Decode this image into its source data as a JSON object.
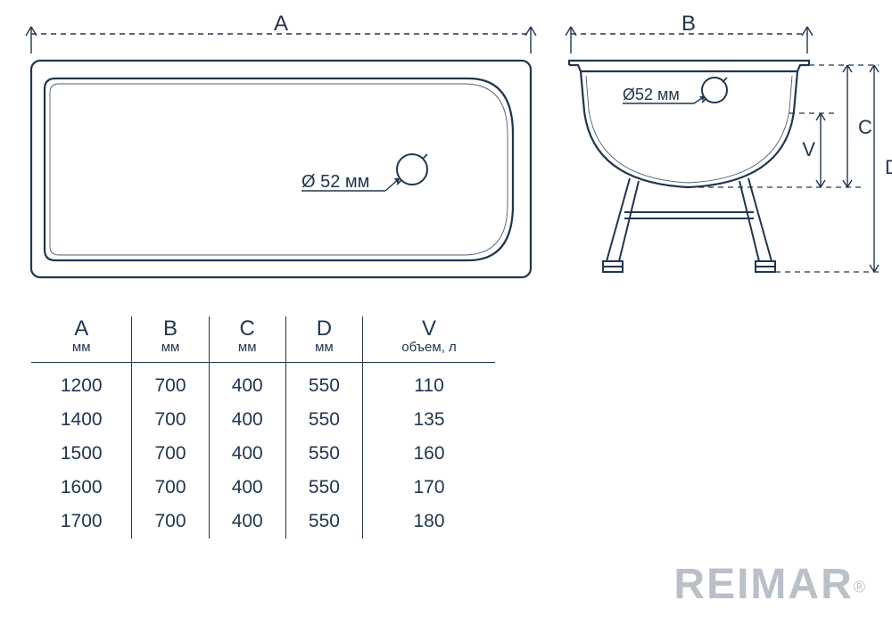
{
  "colors": {
    "line": "#21364f",
    "text": "#21364f",
    "logo": "#b9c0c8",
    "bg": "#ffffff",
    "dash": "#21364f"
  },
  "stroke": {
    "main": 2.2,
    "thin": 1.4,
    "dash_pattern": "6 5"
  },
  "topview": {
    "dim_label": "A",
    "drain_label": "Ø 52 мм"
  },
  "sideview": {
    "width_label": "B",
    "depth_label": "C",
    "height_label": "D",
    "vol_label": "V",
    "drain_label": "Ø52 мм"
  },
  "table": {
    "columns": [
      {
        "key": "A",
        "label": "A",
        "unit": "мм"
      },
      {
        "key": "B",
        "label": "B",
        "unit": "мм"
      },
      {
        "key": "C",
        "label": "C",
        "unit": "мм"
      },
      {
        "key": "D",
        "label": "D",
        "unit": "мм"
      },
      {
        "key": "V",
        "label": "V",
        "unit": "объем, л"
      }
    ],
    "rows": [
      {
        "A": "1200",
        "B": "700",
        "C": "400",
        "D": "550",
        "V": "110"
      },
      {
        "A": "1400",
        "B": "700",
        "C": "400",
        "D": "550",
        "V": "135"
      },
      {
        "A": "1500",
        "B": "700",
        "C": "400",
        "D": "550",
        "V": "160"
      },
      {
        "A": "1600",
        "B": "700",
        "C": "400",
        "D": "550",
        "V": "170"
      },
      {
        "A": "1700",
        "B": "700",
        "C": "400",
        "D": "550",
        "V": "180"
      }
    ]
  },
  "logo": {
    "text": "REIMAR",
    "registered": "®"
  }
}
